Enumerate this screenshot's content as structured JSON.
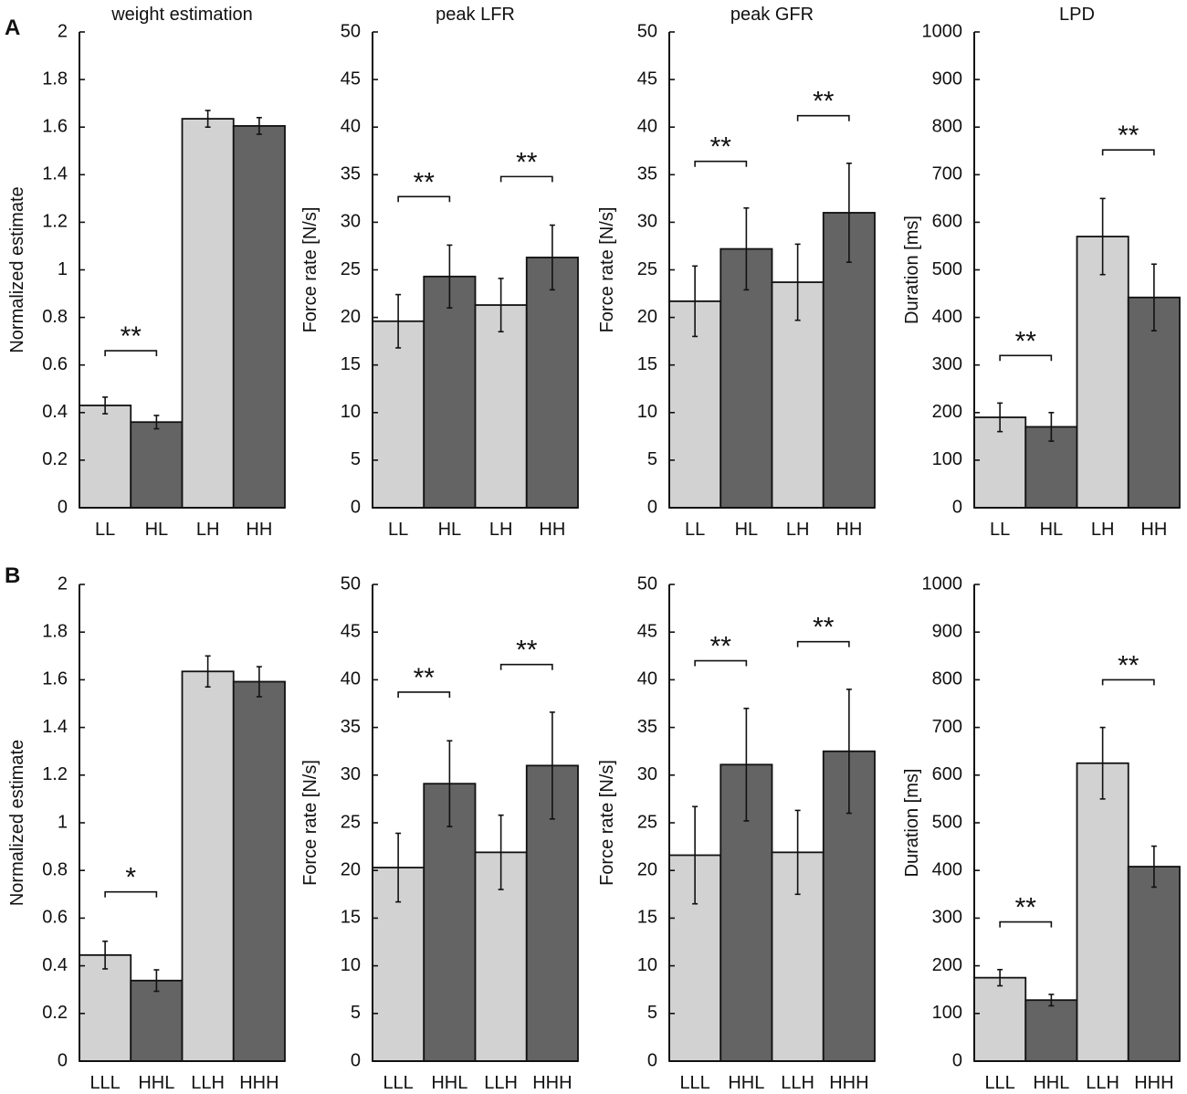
{
  "panel_labels": [
    "A",
    "B"
  ],
  "colors": {
    "light": "#d2d2d2",
    "dark": "#646464",
    "ink": "#111111"
  },
  "chart_data": [
    {
      "type": "bar",
      "row": 0,
      "col": 0,
      "title": "weight estimation",
      "ylabel": "Normalized estimate",
      "ylim": [
        0,
        2
      ],
      "yticks": [
        "0",
        "0.2",
        "0.4",
        "0.6",
        "0.8",
        "1",
        "1.2",
        "1.4",
        "1.6",
        "1.8",
        "2"
      ],
      "categories": [
        "LL",
        "HL",
        "LH",
        "HH"
      ],
      "values": [
        0.43,
        0.36,
        1.635,
        1.605
      ],
      "errors": [
        0.035,
        0.028,
        0.035,
        0.035
      ],
      "significance": [
        {
          "pair": [
            0,
            1
          ],
          "label": "**",
          "bracket_y": 0.66
        }
      ]
    },
    {
      "type": "bar",
      "row": 0,
      "col": 1,
      "title": "peak LFR",
      "ylabel": "Force rate [N/s]",
      "ylim": [
        0,
        50
      ],
      "yticks": [
        "0",
        "5",
        "10",
        "15",
        "20",
        "25",
        "30",
        "35",
        "40",
        "45",
        "50"
      ],
      "categories": [
        "LL",
        "HL",
        "LH",
        "HH"
      ],
      "values": [
        19.6,
        24.3,
        21.3,
        26.3
      ],
      "errors": [
        2.8,
        3.3,
        2.8,
        3.4
      ],
      "significance": [
        {
          "pair": [
            0,
            1
          ],
          "label": "**",
          "bracket_y": 32.7
        },
        {
          "pair": [
            2,
            3
          ],
          "label": "**",
          "bracket_y": 34.8
        }
      ]
    },
    {
      "type": "bar",
      "row": 0,
      "col": 2,
      "title": "peak GFR",
      "ylabel": "Force rate [N/s]",
      "ylim": [
        0,
        50
      ],
      "yticks": [
        "0",
        "5",
        "10",
        "15",
        "20",
        "25",
        "30",
        "35",
        "40",
        "45",
        "50"
      ],
      "categories": [
        "LL",
        "HL",
        "LH",
        "HH"
      ],
      "values": [
        21.7,
        27.2,
        23.7,
        31.0
      ],
      "errors": [
        3.7,
        4.3,
        4.0,
        5.2
      ],
      "significance": [
        {
          "pair": [
            0,
            1
          ],
          "label": "**",
          "bracket_y": 36.4
        },
        {
          "pair": [
            2,
            3
          ],
          "label": "**",
          "bracket_y": 41.2
        }
      ]
    },
    {
      "type": "bar",
      "row": 0,
      "col": 3,
      "title": "LPD",
      "ylabel": "Duration [ms]",
      "ylim": [
        0,
        1000
      ],
      "yticks": [
        "0",
        "100",
        "200",
        "300",
        "400",
        "500",
        "600",
        "700",
        "800",
        "900",
        "1000"
      ],
      "categories": [
        "LL",
        "HL",
        "LH",
        "HH"
      ],
      "values": [
        190,
        170,
        570,
        442
      ],
      "errors": [
        30,
        30,
        80,
        70
      ],
      "significance": [
        {
          "pair": [
            0,
            1
          ],
          "label": "**",
          "bracket_y": 320
        },
        {
          "pair": [
            2,
            3
          ],
          "label": "**",
          "bracket_y": 752
        }
      ]
    },
    {
      "type": "bar",
      "row": 1,
      "col": 0,
      "title": "",
      "ylabel": "Normalized estimate",
      "ylim": [
        0,
        2
      ],
      "yticks": [
        "0",
        "0.2",
        "0.4",
        "0.6",
        "0.8",
        "1",
        "1.2",
        "1.4",
        "1.6",
        "1.8",
        "2"
      ],
      "categories": [
        "LLL",
        "HHL",
        "LLH",
        "HHH"
      ],
      "values": [
        0.445,
        0.338,
        1.635,
        1.592
      ],
      "errors": [
        0.058,
        0.045,
        0.065,
        0.063
      ],
      "significance": [
        {
          "pair": [
            0,
            1
          ],
          "label": "*",
          "bracket_y": 0.71
        }
      ]
    },
    {
      "type": "bar",
      "row": 1,
      "col": 1,
      "title": "",
      "ylabel": "Force rate [N/s]",
      "ylim": [
        0,
        50
      ],
      "yticks": [
        "0",
        "5",
        "10",
        "15",
        "20",
        "25",
        "30",
        "35",
        "40",
        "45",
        "50"
      ],
      "categories": [
        "LLL",
        "HHL",
        "LLH",
        "HHH"
      ],
      "values": [
        20.3,
        29.1,
        21.9,
        31.0
      ],
      "errors": [
        3.6,
        4.5,
        3.9,
        5.6
      ],
      "significance": [
        {
          "pair": [
            0,
            1
          ],
          "label": "**",
          "bracket_y": 38.7
        },
        {
          "pair": [
            2,
            3
          ],
          "label": "**",
          "bracket_y": 41.6
        }
      ]
    },
    {
      "type": "bar",
      "row": 1,
      "col": 2,
      "title": "",
      "ylabel": "Force rate [N/s]",
      "ylim": [
        0,
        50
      ],
      "yticks": [
        "0",
        "5",
        "10",
        "15",
        "20",
        "25",
        "30",
        "35",
        "40",
        "45",
        "50"
      ],
      "categories": [
        "LLL",
        "HHL",
        "LLH",
        "HHH"
      ],
      "values": [
        21.6,
        31.1,
        21.9,
        32.5
      ],
      "errors": [
        5.1,
        5.9,
        4.4,
        6.5
      ],
      "significance": [
        {
          "pair": [
            0,
            1
          ],
          "label": "**",
          "bracket_y": 42.0
        },
        {
          "pair": [
            2,
            3
          ],
          "label": "**",
          "bracket_y": 44.0
        }
      ]
    },
    {
      "type": "bar",
      "row": 1,
      "col": 3,
      "title": "",
      "ylabel": "Duration [ms]",
      "ylim": [
        0,
        1000
      ],
      "yticks": [
        "0",
        "100",
        "200",
        "300",
        "400",
        "500",
        "600",
        "700",
        "800",
        "900",
        "1000"
      ],
      "categories": [
        "LLL",
        "HHL",
        "LLH",
        "HHH"
      ],
      "values": [
        175,
        128,
        625,
        408
      ],
      "errors": [
        17,
        12,
        75,
        43
      ],
      "significance": [
        {
          "pair": [
            0,
            1
          ],
          "label": "**",
          "bracket_y": 292
        },
        {
          "pair": [
            2,
            3
          ],
          "label": "**",
          "bracket_y": 800
        }
      ]
    }
  ]
}
